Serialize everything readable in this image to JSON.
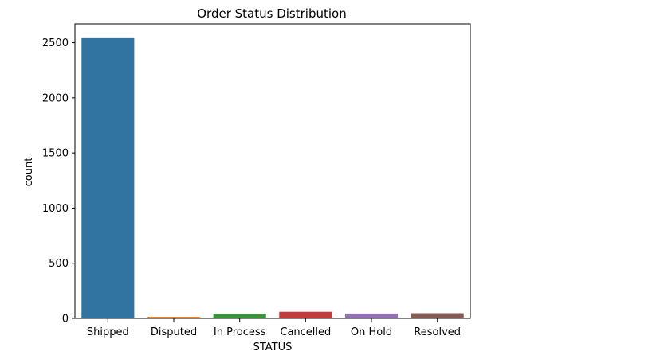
{
  "chart_data": {
    "type": "bar",
    "title": "Order Status Distribution",
    "xlabel": "STATUS",
    "ylabel": "count",
    "categories": [
      "Shipped",
      "Disputed",
      "In Process",
      "Cancelled",
      "On Hold",
      "Resolved"
    ],
    "values": [
      2541,
      14,
      41,
      60,
      44,
      47
    ],
    "colors": [
      "#3274a1",
      "#e1812c",
      "#3a923a",
      "#c03d3e",
      "#9372b2",
      "#845b53"
    ],
    "ylim": [
      0,
      2670
    ],
    "yticks": [
      0,
      500,
      1000,
      1500,
      2000,
      2500
    ],
    "grid": false,
    "legend": "none"
  }
}
